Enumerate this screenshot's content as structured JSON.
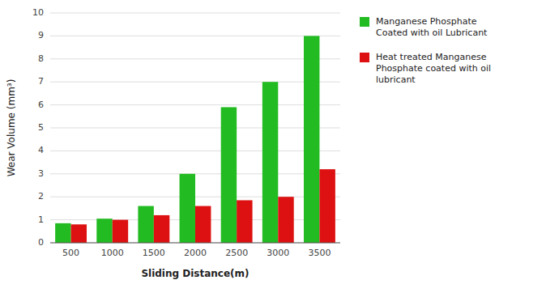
{
  "chart_data": {
    "type": "bar",
    "categories": [
      "500",
      "1000",
      "1500",
      "2000",
      "2500",
      "3000",
      "3500"
    ],
    "series": [
      {
        "name": "Manganese Phosphate\n  Coated with oil Lubricant",
        "color": "#22bb22",
        "values": [
          0.85,
          1.05,
          1.6,
          3.0,
          5.9,
          7.0,
          9.0
        ]
      },
      {
        "name": "Heat treated Manganese\n  Phosphate coated with oil\n  lubricant",
        "color": "#dd1111",
        "values": [
          0.8,
          1.0,
          1.2,
          1.6,
          1.85,
          2.0,
          3.2
        ]
      }
    ],
    "x_label": "Sliding Distance(m)",
    "y_label": "Wear Volume (mm³)",
    "ylim": [
      0,
      10
    ],
    "yticks": [
      0,
      1,
      2,
      3,
      4,
      5,
      6,
      7,
      8,
      9,
      10
    ],
    "grid": true,
    "legend": "right"
  }
}
